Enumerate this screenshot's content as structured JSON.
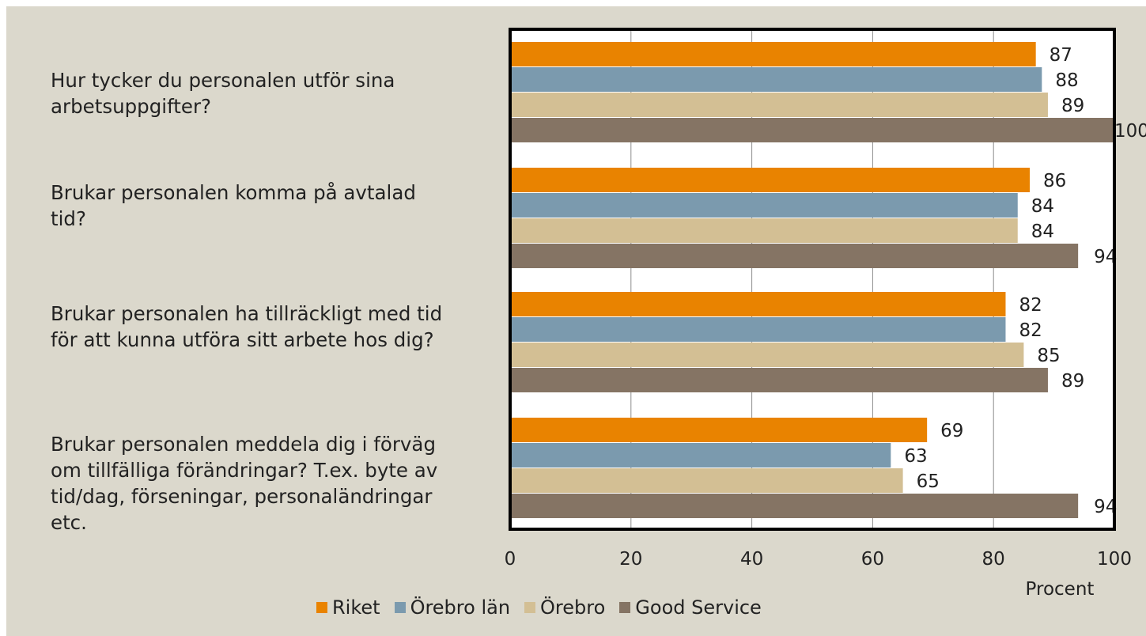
{
  "chart_data": {
    "type": "bar",
    "orientation": "horizontal",
    "categories": [
      "Hur tycker du personalen utför sina\narbetsuppgifter?",
      "Brukar personalen komma på avtalad\ntid?",
      "Brukar personalen ha tillräckligt med tid\nför att kunna utföra sitt arbete hos dig?",
      "Brukar personalen meddela dig i förväg\nom tillfälliga förändringar? T.ex. byte av\ntid/dag, förseningar, personaländringar\netc."
    ],
    "series": [
      {
        "name": "Riket",
        "color": "#e98300",
        "values": [
          87,
          86,
          82,
          69
        ]
      },
      {
        "name": "Örebro län",
        "color": "#7b9aae",
        "values": [
          88,
          84,
          82,
          63
        ]
      },
      {
        "name": "Örebro",
        "color": "#d3bf94",
        "values": [
          89,
          84,
          85,
          65
        ]
      },
      {
        "name": "Good Service",
        "color": "#857464",
        "values": [
          100,
          94,
          89,
          94
        ]
      }
    ],
    "xlim": [
      0,
      100
    ],
    "xticks": [
      "0",
      "20",
      "40",
      "60",
      "80",
      "100"
    ],
    "xlabel": "Procent",
    "grid": true,
    "legend_position": "bottom",
    "data_labels": true
  }
}
